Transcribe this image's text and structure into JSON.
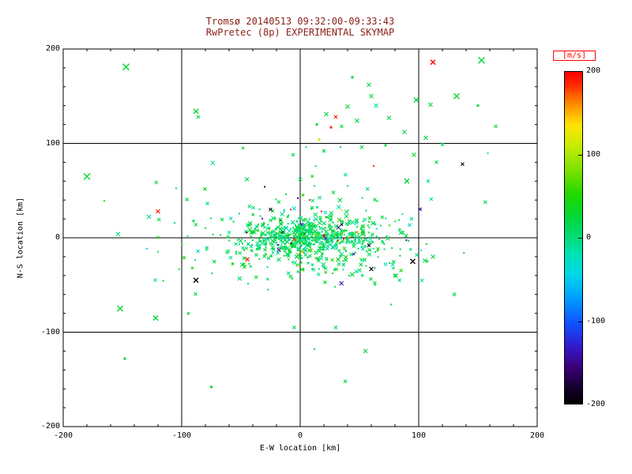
{
  "chart_data": {
    "type": "scatter",
    "title": "Tromsø 20140513 09:32:00-09:33:43",
    "subtitle": "RwPretec (8p) EXPERIMENTAL SKYMAP",
    "xlabel": "E-W location [km]",
    "ylabel": "N-S location [km]",
    "xlim": [
      -200,
      200
    ],
    "ylim": [
      -200,
      200
    ],
    "xticks": [
      -200,
      -100,
      0,
      100,
      200
    ],
    "yticks": [
      -200,
      -100,
      0,
      100,
      200
    ],
    "grid_ticks": [
      -100,
      0,
      100
    ],
    "minor_tick_step": 20,
    "grid": true,
    "legend_position": "right-colorbar",
    "colorbar": {
      "label": "[m/s]",
      "min": -200,
      "max": 200,
      "ticks": [
        200,
        100,
        0,
        -100,
        -200
      ],
      "colormap": [
        [
          0.0,
          "#000000"
        ],
        [
          0.05,
          "#14002e"
        ],
        [
          0.11,
          "#3c0078"
        ],
        [
          0.17,
          "#3418c8"
        ],
        [
          0.24,
          "#1050ff"
        ],
        [
          0.32,
          "#00a0ff"
        ],
        [
          0.39,
          "#00d8e8"
        ],
        [
          0.45,
          "#00e2b4"
        ],
        [
          0.5,
          "#00dc78"
        ],
        [
          0.56,
          "#00d83c"
        ],
        [
          0.63,
          "#20d800"
        ],
        [
          0.7,
          "#78e000"
        ],
        [
          0.78,
          "#c8ec00"
        ],
        [
          0.84,
          "#ffe400"
        ],
        [
          0.9,
          "#ff9000"
        ],
        [
          0.96,
          "#ff2a00"
        ],
        [
          1.0,
          "#ff0000"
        ]
      ]
    },
    "points_outliers": [
      [
        -147,
        181,
        28,
        "x",
        8
      ],
      [
        153,
        188,
        26,
        "x",
        8
      ],
      [
        112,
        186,
        200,
        "x",
        6
      ],
      [
        132,
        150,
        30,
        "x",
        7
      ],
      [
        98,
        146,
        24,
        "x",
        6
      ],
      [
        110,
        141,
        18,
        "x",
        5
      ],
      [
        60,
        150,
        22,
        "x",
        5
      ],
      [
        44,
        170,
        24,
        "d",
        3
      ],
      [
        58,
        162,
        20,
        "x",
        5
      ],
      [
        40,
        139,
        28,
        "x",
        5
      ],
      [
        64,
        140,
        -18,
        "x",
        5
      ],
      [
        22,
        131,
        16,
        "x",
        5
      ],
      [
        30,
        128,
        192,
        "x",
        4
      ],
      [
        14,
        120,
        30,
        "d",
        3
      ],
      [
        26,
        117,
        182,
        "d",
        3
      ],
      [
        35,
        118,
        22,
        "x",
        4
      ],
      [
        48,
        124,
        20,
        "x",
        5
      ],
      [
        75,
        127,
        24,
        "x",
        5
      ],
      [
        88,
        112,
        18,
        "x",
        5
      ],
      [
        16,
        104,
        118,
        "d",
        3
      ],
      [
        106,
        106,
        26,
        "x",
        5
      ],
      [
        120,
        99,
        20,
        "x",
        4
      ],
      [
        72,
        98,
        15,
        "d",
        3
      ],
      [
        52,
        96,
        20,
        "x",
        4
      ],
      [
        34,
        96,
        18,
        "d",
        2
      ],
      [
        20,
        92,
        24,
        "x",
        4
      ],
      [
        5,
        96,
        14,
        "d",
        2
      ],
      [
        -6,
        88,
        20,
        "x",
        4
      ],
      [
        96,
        88,
        30,
        "x",
        5
      ],
      [
        115,
        80,
        22,
        "x",
        4
      ],
      [
        137,
        78,
        -185,
        "x",
        4
      ],
      [
        90,
        60,
        25,
        "x",
        6
      ],
      [
        108,
        60,
        -12,
        "x",
        4
      ],
      [
        62,
        76,
        184,
        "d",
        2
      ],
      [
        150,
        140,
        20,
        "d",
        3
      ],
      [
        165,
        118,
        22,
        "x",
        4
      ],
      [
        -88,
        134,
        28,
        "x",
        6
      ],
      [
        -86,
        128,
        22,
        "x",
        4
      ],
      [
        -180,
        65,
        28,
        "x",
        8
      ],
      [
        -120,
        28,
        195,
        "x",
        5
      ],
      [
        -152,
        -75,
        30,
        "x",
        7
      ],
      [
        -122,
        -85,
        26,
        "x",
        6
      ],
      [
        -88,
        -45,
        -192,
        "x",
        6
      ],
      [
        -45,
        62,
        20,
        "x",
        5
      ],
      [
        -30,
        54,
        -160,
        "d",
        2
      ],
      [
        0,
        62,
        20,
        "x",
        4
      ],
      [
        12,
        55,
        16,
        "d",
        2
      ],
      [
        28,
        48,
        22,
        "x",
        4
      ],
      [
        -12,
        46,
        18,
        "d",
        2
      ],
      [
        40,
        55,
        20,
        "d",
        2
      ],
      [
        -2,
        42,
        -150,
        "d",
        2
      ],
      [
        8,
        40,
        190,
        "d",
        2
      ],
      [
        -18,
        38,
        20,
        "x",
        4
      ],
      [
        -25,
        30,
        -190,
        "x",
        4
      ],
      [
        18,
        28,
        195,
        "d",
        2
      ],
      [
        -8,
        30,
        185,
        "d",
        2
      ],
      [
        95,
        -25,
        -195,
        "x",
        6
      ],
      [
        60,
        -33,
        -185,
        "x",
        5
      ],
      [
        112,
        -20,
        24,
        "x",
        5
      ],
      [
        80,
        -40,
        20,
        "x",
        4
      ],
      [
        72,
        -28,
        -20,
        "x",
        4
      ],
      [
        130,
        -60,
        22,
        "x",
        4
      ],
      [
        -75,
        -158,
        25,
        "d",
        3
      ],
      [
        -148,
        -128,
        20,
        "d",
        3
      ],
      [
        38,
        -152,
        22,
        "x",
        4
      ],
      [
        55,
        -120,
        24,
        "x",
        5
      ],
      [
        30,
        -95,
        20,
        "x",
        4
      ],
      [
        12,
        -118,
        18,
        "d",
        2
      ],
      [
        -5,
        -95,
        22,
        "x",
        4
      ],
      [
        58,
        -8,
        -190,
        "x",
        4
      ],
      [
        48,
        6,
        150,
        "d",
        3
      ],
      [
        20,
        2,
        195,
        "x",
        3
      ],
      [
        -5,
        -2,
        185,
        "x",
        3
      ],
      [
        32,
        -3,
        188,
        "d",
        2
      ],
      [
        35,
        14,
        -180,
        "x",
        3
      ]
    ],
    "cluster_model": {
      "seed": 20140513,
      "groups": [
        {
          "count": 430,
          "cx": 8,
          "cy": 1,
          "sx": 26,
          "sy": 11
        },
        {
          "count": 260,
          "cx": 12,
          "cy": -4,
          "sx": 46,
          "sy": 20
        },
        {
          "count": 90,
          "cx": 2,
          "cy": 6,
          "sx": 68,
          "sy": 34
        }
      ],
      "v_mean": 12,
      "v_sd": 20,
      "extreme_fraction": 0.03
    }
  },
  "colors": {
    "background": "#ffffff",
    "axis": "#000000",
    "title_text": "#8b2219",
    "colorbar_label": "#ff0000"
  }
}
